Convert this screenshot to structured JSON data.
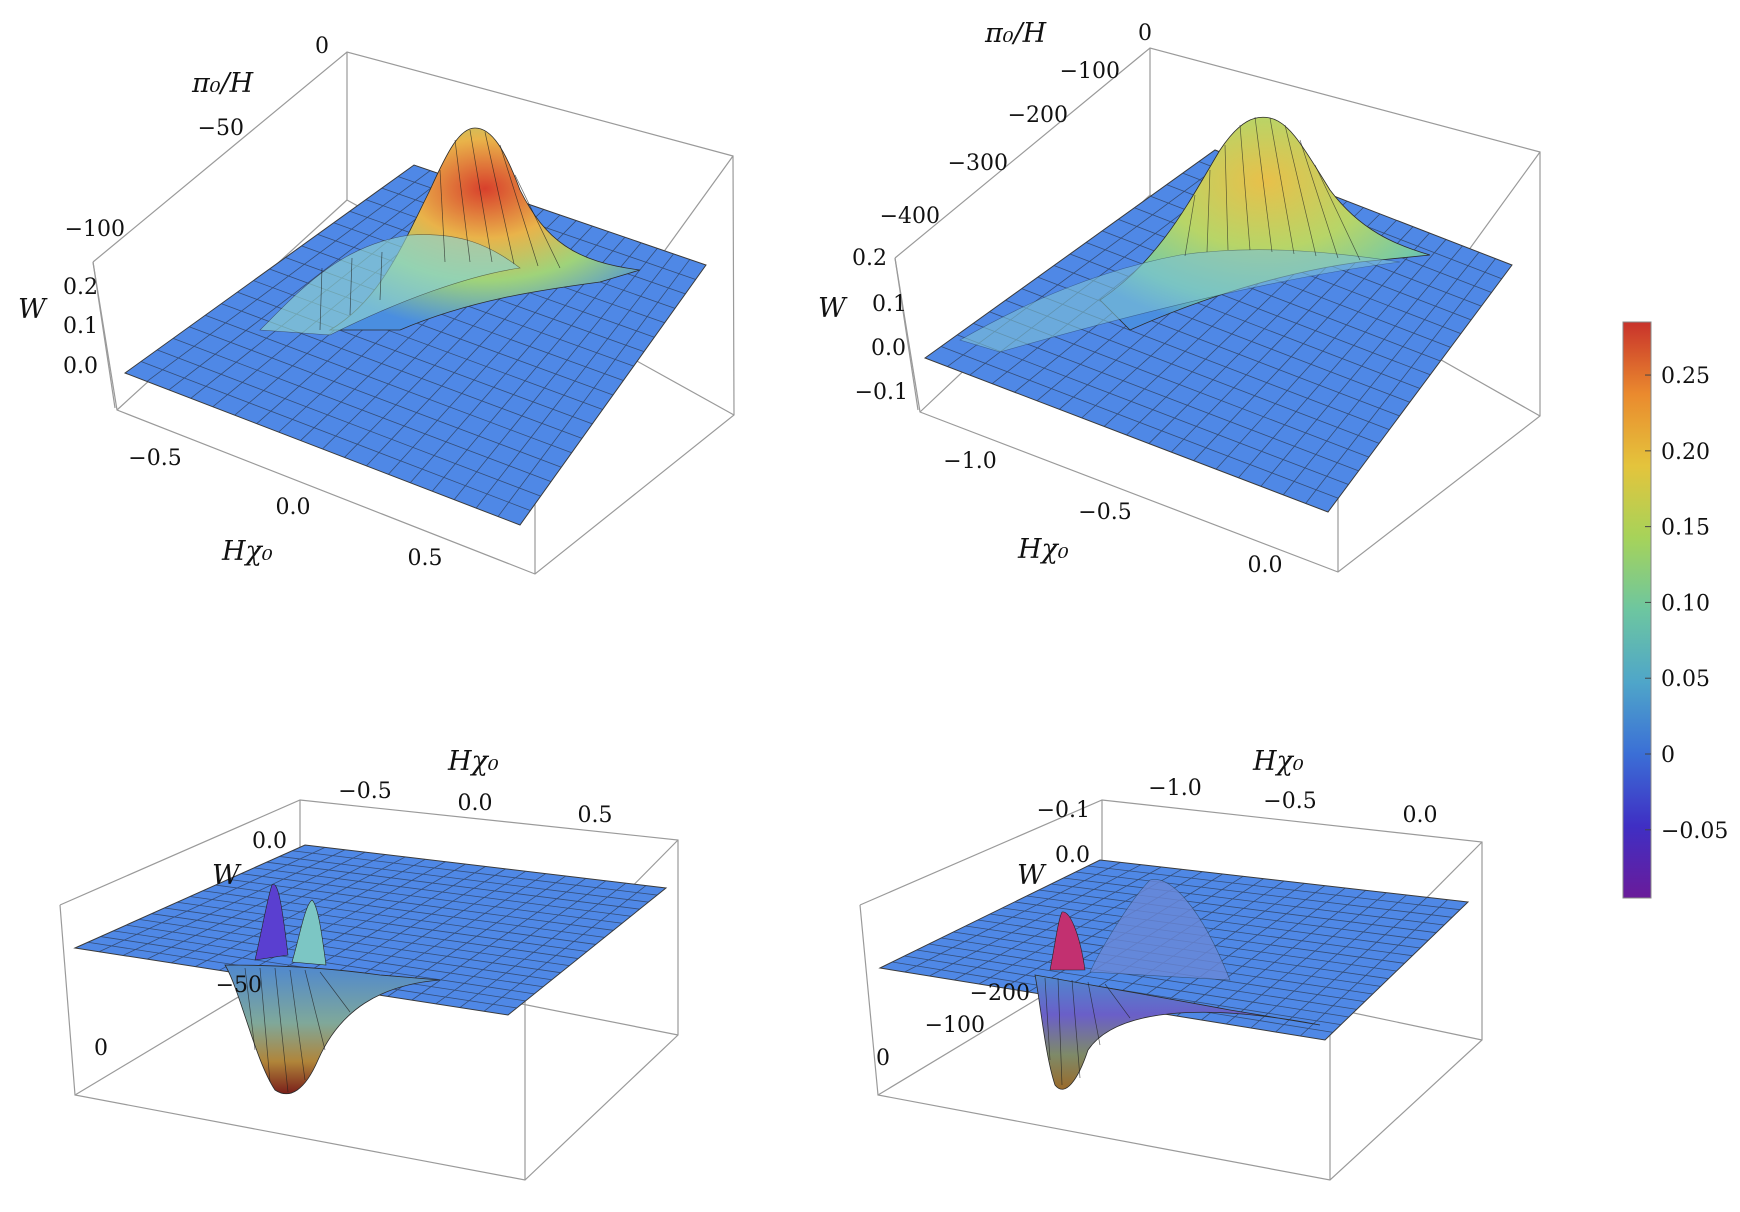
{
  "chart_data": [
    {
      "type": "surface3d",
      "panel": "top-left",
      "xlabel": "Hχ₀",
      "ylabel": "π₀/H",
      "zlabel": "W",
      "x_ticks": [
        "−0.5",
        "0.0",
        "0.5"
      ],
      "y_ticks": [
        "0",
        "−50",
        "−100"
      ],
      "z_ticks": [
        "0.2",
        "0.1",
        "0.0"
      ],
      "xlim": [
        -0.75,
        0.75
      ],
      "ylim": [
        -150,
        0
      ],
      "zlim": [
        -0.05,
        0.28
      ],
      "peak": {
        "x": 0.0,
        "y": -15,
        "z": 0.27
      },
      "colormap": "rainbow"
    },
    {
      "type": "surface3d",
      "panel": "top-right",
      "xlabel": "Hχ₀",
      "ylabel": "π₀/H",
      "zlabel": "W",
      "x_ticks": [
        "−1.0",
        "−0.5",
        "0.0"
      ],
      "y_ticks": [
        "0",
        "−100",
        "−200",
        "−300",
        "−400"
      ],
      "z_ticks": [
        "0.2",
        "0.1",
        "0.0",
        "−0.1"
      ],
      "xlim": [
        -1.3,
        0.2
      ],
      "ylim": [
        -500,
        0
      ],
      "zlim": [
        -0.12,
        0.25
      ],
      "peak": {
        "x": -0.4,
        "y": -80,
        "z": 0.22
      },
      "colormap": "rainbow"
    },
    {
      "type": "surface3d",
      "panel": "bottom-left",
      "xlabel": "Hχ₀",
      "zlabel": "W",
      "x_ticks": [
        "−0.5",
        "0.0",
        "0.5"
      ],
      "y_ticks": [
        "−50",
        "0"
      ],
      "z_ticks": [
        "0.0"
      ],
      "xlim": [
        -0.75,
        0.75
      ],
      "ylim": [
        -150,
        0
      ],
      "zlim": [
        -0.1,
        0.05
      ],
      "trough": {
        "x": -0.45,
        "y": -10,
        "z": -0.09
      },
      "colormap": "rainbow"
    },
    {
      "type": "surface3d",
      "panel": "bottom-right",
      "xlabel": "Hχ₀",
      "zlabel": "W",
      "x_ticks": [
        "−1.0",
        "−0.5",
        "0.0"
      ],
      "y_ticks": [
        "−200",
        "−100",
        "0"
      ],
      "z_ticks": [
        "−0.1",
        "0.0"
      ],
      "xlim": [
        -1.3,
        0.2
      ],
      "ylim": [
        -500,
        0
      ],
      "zlim": [
        -0.1,
        0.05
      ],
      "trough": {
        "x": -0.9,
        "y": -30,
        "z": -0.085
      },
      "colormap": "rainbow"
    }
  ],
  "colorbar": {
    "ticks": [
      "0.25",
      "0.20",
      "0.15",
      "0.10",
      "0.05",
      "0",
      "−0.05"
    ],
    "tick_values": [
      0.25,
      0.2,
      0.15,
      0.1,
      0.05,
      0,
      -0.05
    ],
    "min": -0.095,
    "max": 0.285,
    "colors": [
      "#6a1b9a",
      "#3f2fc4",
      "#3b6fd6",
      "#4fa6c9",
      "#6dc6a0",
      "#a6d35a",
      "#e4c43c",
      "#ea8a2e",
      "#c8322b"
    ]
  }
}
